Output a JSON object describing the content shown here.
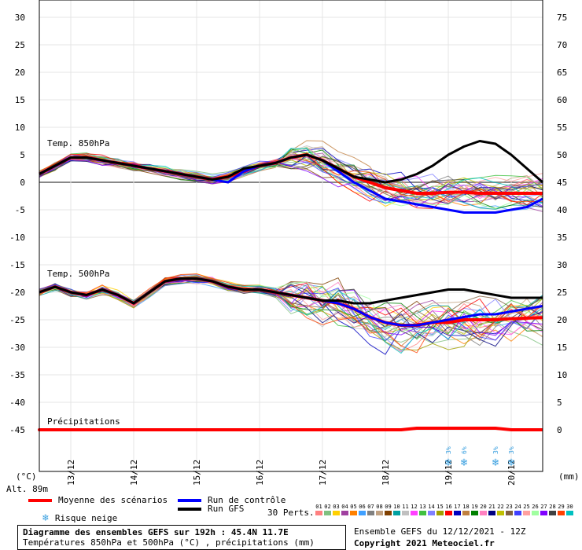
{
  "chart_data": {
    "type": "line",
    "title": "Diagramme des ensembles GEFS sur 192h : 45.4N 11.7E",
    "subtitle": "Températures 850hPa et 500hPa (°C) , précipitations (mm)",
    "left_axis_unit": "(°C)",
    "right_axis_unit": "(mm)",
    "altitude": "Alt. 89m",
    "left_ticks": [
      "30",
      "25",
      "20",
      "15",
      "10",
      "5",
      "0",
      "-5",
      "-10",
      "-15",
      "-20",
      "-25",
      "-30",
      "-35",
      "-40",
      "-45"
    ],
    "right_ticks": [
      "75",
      "70",
      "65",
      "60",
      "55",
      "50",
      "45",
      "40",
      "35",
      "30",
      "25",
      "20",
      "15",
      "10",
      "5",
      "0"
    ],
    "x_ticks": [
      "13/12",
      "14/12",
      "15/12",
      "16/12",
      "17/12",
      "18/12",
      "19/12",
      "20/12"
    ],
    "panels": [
      "Temp. 850hPa",
      "Temp. 500hPa",
      "Précipitations"
    ],
    "x": [
      0,
      6,
      12,
      18,
      24,
      30,
      36,
      42,
      48,
      54,
      60,
      66,
      72,
      78,
      84,
      90,
      96,
      102,
      108,
      114,
      120,
      126,
      132,
      138,
      144,
      150,
      156,
      162,
      168,
      174,
      180,
      186,
      192
    ],
    "series": [
      {
        "name": "Moyenne des scénarios",
        "color": "#ff0000",
        "panel": "850",
        "values": [
          1.5,
          3,
          4.5,
          4.5,
          4,
          3.5,
          3,
          2.5,
          2,
          1.5,
          1,
          0.5,
          1,
          2,
          3,
          3.5,
          4.5,
          5,
          4,
          2.5,
          1,
          0,
          -1,
          -1.5,
          -2,
          -2,
          -1.8,
          -1.8,
          -2,
          -2,
          -2,
          -2,
          -2
        ]
      },
      {
        "name": "Run de contrôle",
        "color": "#0000ff",
        "panel": "850",
        "values": [
          1.5,
          3,
          4.5,
          4.5,
          4,
          3.5,
          3,
          2.5,
          2,
          1.5,
          1,
          0.5,
          0,
          2,
          3,
          3.5,
          4.5,
          5,
          4,
          2,
          0,
          -1.5,
          -3,
          -3.5,
          -4,
          -4.5,
          -5,
          -5.5,
          -5.5,
          -5.5,
          -5,
          -4.5,
          -3
        ]
      },
      {
        "name": "Run GFS",
        "color": "#000000",
        "panel": "850",
        "values": [
          1.5,
          3,
          4.5,
          4.5,
          4,
          3.5,
          3,
          2.5,
          2,
          1.5,
          1,
          0.5,
          1,
          2.5,
          3,
          3.5,
          4.5,
          5,
          4,
          2.5,
          1,
          0.5,
          0,
          0.5,
          1.5,
          3,
          5,
          6.5,
          7.5,
          7,
          5,
          2.5,
          0
        ]
      },
      {
        "name": "Moyenne des scénarios",
        "color": "#ff0000",
        "panel": "500",
        "values": [
          -20,
          -19,
          -20,
          -20.5,
          -19.5,
          -20.5,
          -22,
          -20,
          -18,
          -17.5,
          -17.5,
          -18,
          -19,
          -19.5,
          -19.5,
          -20,
          -20.5,
          -21,
          -21.5,
          -22,
          -23,
          -24.5,
          -25.5,
          -26,
          -26,
          -25.5,
          -25.5,
          -25,
          -25,
          -25,
          -24.8,
          -24.7,
          -24.6
        ]
      },
      {
        "name": "Run de contrôle",
        "color": "#0000ff",
        "panel": "500",
        "values": [
          -20,
          -19,
          -20,
          -20.5,
          -19.5,
          -20.5,
          -22,
          -20,
          -18,
          -17.5,
          -17.5,
          -18,
          -19,
          -19.5,
          -19.5,
          -20,
          -20.5,
          -21,
          -21.5,
          -22,
          -23,
          -24.5,
          -25.5,
          -26,
          -26,
          -25.5,
          -25,
          -24.5,
          -24,
          -24,
          -23.5,
          -23,
          -22.5
        ]
      },
      {
        "name": "Run GFS",
        "color": "#000000",
        "panel": "500",
        "values": [
          -20,
          -19,
          -20,
          -20.5,
          -19.5,
          -20.5,
          -22,
          -20,
          -18,
          -17.5,
          -17.5,
          -18,
          -19,
          -19.5,
          -19.5,
          -20,
          -20.5,
          -21,
          -21.5,
          -21.5,
          -22,
          -22,
          -21.5,
          -21,
          -20.5,
          -20,
          -19.5,
          -19.5,
          -20,
          -20.5,
          -21,
          -21,
          -21
        ]
      },
      {
        "name": "Précipitations",
        "color": "#ff0000",
        "panel": "precip",
        "values": [
          0,
          0,
          0,
          0,
          0,
          0,
          0,
          0,
          0,
          0,
          0,
          0,
          0,
          0,
          0,
          0,
          0,
          0,
          0,
          0,
          0,
          0,
          0,
          0,
          0.1,
          0.1,
          0.1,
          0.1,
          0.1,
          0.1,
          0,
          0,
          0
        ]
      }
    ],
    "snow_markers": [
      {
        "x": 156,
        "pct": "3%"
      },
      {
        "x": 162,
        "pct": "6%"
      },
      {
        "x": 174,
        "pct": "3%"
      },
      {
        "x": 180,
        "pct": "3%"
      }
    ]
  },
  "legend": {
    "mean": "Moyenne des scénarios",
    "control": "Run de contrôle",
    "gfs": "Run GFS",
    "snow": "Risque neige",
    "perts_label": "30 Perts.",
    "perts": [
      "01",
      "02",
      "03",
      "04",
      "05",
      "06",
      "07",
      "08",
      "09",
      "10",
      "11",
      "12",
      "13",
      "14",
      "15",
      "16",
      "17",
      "18",
      "19",
      "20",
      "21",
      "22",
      "23",
      "24",
      "25",
      "26",
      "27",
      "28",
      "29",
      "30"
    ],
    "pert_colors": [
      "#ff8080",
      "#80c080",
      "#ffd000",
      "#a040a0",
      "#ff8000",
      "#40a0ff",
      "#808080",
      "#c0a080",
      "#804000",
      "#00a0a0",
      "#c0c0c0",
      "#ff40ff",
      "#40c040",
      "#8080ff",
      "#a0a000",
      "#ff0000",
      "#0000c0",
      "#c08040",
      "#008000",
      "#ff80c0",
      "#000080",
      "#c0c000",
      "#806040",
      "#4040ff",
      "#ffa0a0",
      "#a0ffa0",
      "#8000ff",
      "#404040",
      "#ff4000",
      "#00c0c0"
    ]
  },
  "footer": {
    "ensemble_info": "Ensemble GEFS du 12/12/2021 - 12Z",
    "copyright": "Copyright 2021 Meteociel.fr"
  }
}
